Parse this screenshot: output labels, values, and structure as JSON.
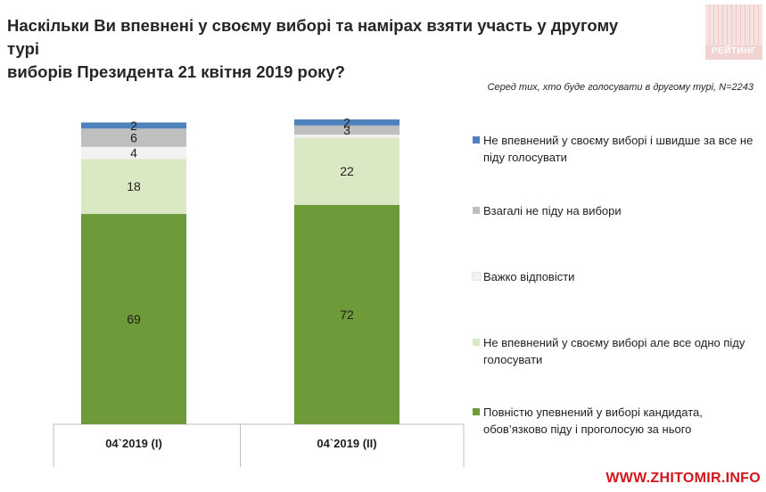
{
  "header": {
    "title_line1": "Наскільки Ви впевнені у своєму виборі та намірах взяти участь у другому турі",
    "title_line2": "виборів Президента 21 квітня 2019 року?"
  },
  "logo": {
    "text": "РЕЙТИНГ"
  },
  "subtitle": "Серед тих, хто буде голосувати в другому турі, N=2243",
  "watermark": "WWW.ZHITOMIR.INFO",
  "chart_data": {
    "type": "bar",
    "stacked": true,
    "categories": [
      "04`2019 (I)",
      "04`2019 (II)"
    ],
    "series": [
      {
        "name": "Повністю упевнений у виборі кандидата, обов’язково піду і проголосую за нього",
        "values": [
          69,
          72
        ],
        "color": "#6f9a3a"
      },
      {
        "name": "Не впевнений у своєму виборі але все одно піду голосувати",
        "values": [
          18,
          22
        ],
        "color": "#dbe8c4"
      },
      {
        "name": "Важко відповісти",
        "values": [
          4,
          1
        ],
        "color": "#f2f2f2"
      },
      {
        "name": "Взагалі не піду на вибори",
        "values": [
          6,
          3
        ],
        "color": "#bfbfbf"
      },
      {
        "name": "Не впевнений у своєму виборі і швидше за все не піду голосувати",
        "values": [
          2,
          2
        ],
        "color": "#4f81bd"
      }
    ],
    "data_labels": [
      [
        "69",
        "72"
      ],
      [
        "18",
        "22"
      ],
      [
        "4",
        ""
      ],
      [
        "6",
        "3"
      ],
      [
        "2",
        "2"
      ]
    ],
    "ylim": [
      0,
      100
    ],
    "legend_placement": "right",
    "legend_order_top_to_bottom": [
      4,
      3,
      2,
      1,
      0
    ]
  }
}
